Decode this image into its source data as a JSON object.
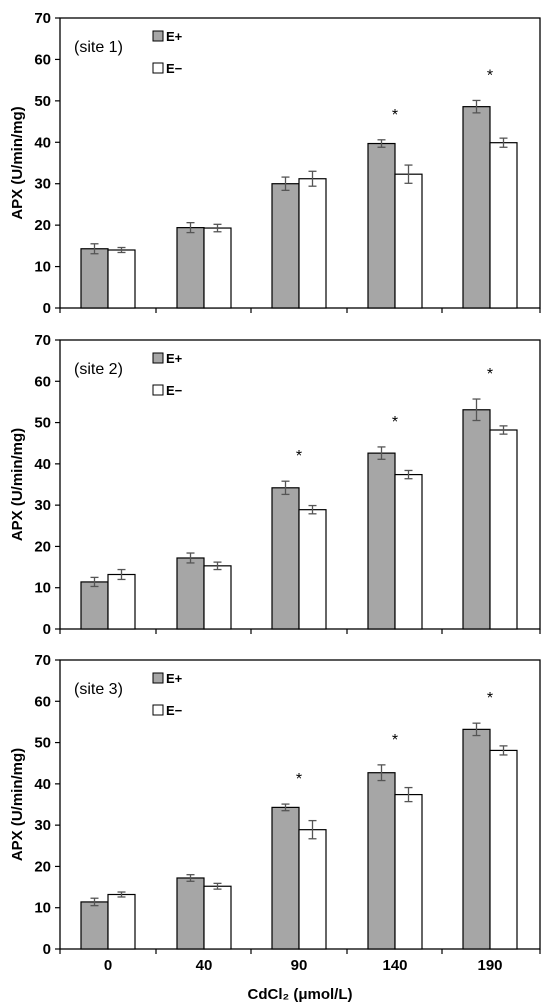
{
  "chart_data": [
    {
      "type": "bar",
      "panel_label": "(site 1)",
      "ylabel": "APX (U/min/mg)",
      "ylim": [
        0,
        70
      ],
      "yticks": [
        "0",
        "10",
        "20",
        "30",
        "40",
        "50",
        "60",
        "70"
      ],
      "categories": [
        "0",
        "40",
        "90",
        "140",
        "190"
      ],
      "legend_position": "top-left",
      "series": [
        {
          "name": "E+",
          "color": "#a6a6a6",
          "values": [
            14.3,
            19.4,
            30.0,
            39.7,
            48.6
          ],
          "errors": [
            1.2,
            1.2,
            1.6,
            0.9,
            1.5
          ]
        },
        {
          "name": "E−",
          "color": "#ffffff",
          "values": [
            14.0,
            19.3,
            31.2,
            32.3,
            39.9
          ],
          "errors": [
            0.6,
            0.9,
            1.8,
            2.2,
            1.1
          ]
        }
      ],
      "significance": [
        "",
        "",
        "",
        "*",
        "*"
      ]
    },
    {
      "type": "bar",
      "panel_label": "(site 2)",
      "ylabel": "APX (U/min/mg)",
      "ylim": [
        0,
        70
      ],
      "yticks": [
        "0",
        "10",
        "20",
        "30",
        "40",
        "50",
        "60",
        "70"
      ],
      "categories": [
        "0",
        "40",
        "90",
        "140",
        "190"
      ],
      "legend_position": "top-left",
      "series": [
        {
          "name": "E+",
          "color": "#a6a6a6",
          "values": [
            11.4,
            17.2,
            34.2,
            42.6,
            53.1
          ],
          "errors": [
            1.1,
            1.2,
            1.6,
            1.5,
            2.6
          ]
        },
        {
          "name": "E−",
          "color": "#ffffff",
          "values": [
            13.2,
            15.3,
            28.9,
            37.4,
            48.2
          ],
          "errors": [
            1.2,
            0.9,
            1.0,
            1.0,
            1.0
          ]
        }
      ],
      "significance": [
        "",
        "",
        "*",
        "*",
        "*"
      ]
    },
    {
      "type": "bar",
      "panel_label": "(site 3)",
      "ylabel": "APX (U/min/mg)",
      "xlabel": "CdCl₂ (μmol/L)",
      "ylim": [
        0,
        70
      ],
      "yticks": [
        "0",
        "10",
        "20",
        "30",
        "40",
        "50",
        "60",
        "70"
      ],
      "categories": [
        "0",
        "40",
        "90",
        "140",
        "190"
      ],
      "legend_position": "top-left",
      "series": [
        {
          "name": "E+",
          "color": "#a6a6a6",
          "values": [
            11.4,
            17.2,
            34.3,
            42.7,
            53.2
          ],
          "errors": [
            0.9,
            0.8,
            0.8,
            1.9,
            1.5
          ]
        },
        {
          "name": "E−",
          "color": "#ffffff",
          "values": [
            13.2,
            15.2,
            28.9,
            37.4,
            48.1
          ],
          "errors": [
            0.6,
            0.7,
            2.2,
            1.7,
            1.1
          ]
        }
      ],
      "significance": [
        "",
        "",
        "*",
        "*",
        "*"
      ]
    }
  ]
}
